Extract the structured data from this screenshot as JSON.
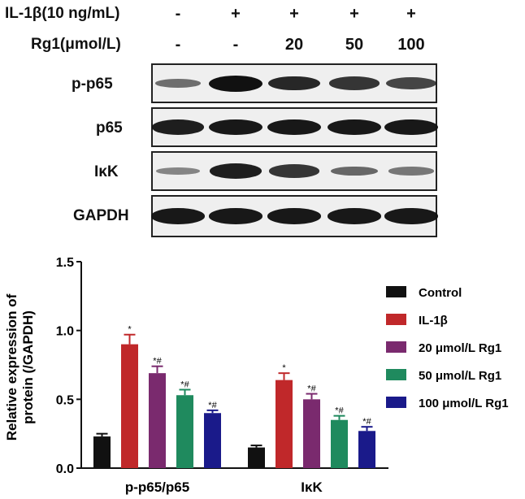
{
  "header": {
    "row1_label": "IL-1β(10 ng/mL)",
    "row1_signs": [
      "-",
      "+",
      "+",
      "+",
      "+"
    ],
    "row2_label": "Rg1(μmol/L)",
    "row2_values": [
      "-",
      "-",
      "20",
      "50",
      "100"
    ]
  },
  "blot": {
    "rows": [
      {
        "label": "p-p65",
        "intensity": [
          0.35,
          1.0,
          0.85,
          0.75,
          0.65
        ]
      },
      {
        "label": "p65",
        "intensity": [
          0.9,
          0.95,
          0.95,
          0.95,
          0.95
        ]
      },
      {
        "label": "IκK",
        "intensity": [
          0.2,
          0.9,
          0.75,
          0.4,
          0.3
        ]
      },
      {
        "label": "GAPDH",
        "intensity": [
          0.95,
          0.95,
          0.95,
          0.95,
          0.95
        ]
      }
    ]
  },
  "chart_data": {
    "type": "bar",
    "categories": [
      "p-p65/p65",
      "IκK"
    ],
    "ylabel": "Relative expression of\nprotein (/GAPDH)",
    "ylim": [
      0,
      1.5
    ],
    "yticks": [
      "0.0",
      "0.5",
      "1.0",
      "1.5"
    ],
    "legend_position": "right",
    "series": [
      {
        "name": "Control",
        "color": "#111111",
        "values": [
          0.23,
          0.15
        ],
        "errors": [
          0.02,
          0.015
        ],
        "annotations": [
          "",
          ""
        ]
      },
      {
        "name": "IL-1β",
        "color": "#c0282a",
        "values": [
          0.9,
          0.64
        ],
        "errors": [
          0.07,
          0.05
        ],
        "annotations": [
          "*",
          "*"
        ]
      },
      {
        "name": "20 μmol/L Rg1",
        "color": "#7a2a6e",
        "values": [
          0.69,
          0.5
        ],
        "errors": [
          0.05,
          0.04
        ],
        "annotations": [
          "*#",
          "*#"
        ]
      },
      {
        "name": "50 μmol/L Rg1",
        "color": "#1f8a5e",
        "values": [
          0.53,
          0.35
        ],
        "errors": [
          0.04,
          0.03
        ],
        "annotations": [
          "*#",
          "*#"
        ]
      },
      {
        "name": "100 μmol/L Rg1",
        "color": "#1a1a8a",
        "values": [
          0.4,
          0.27
        ],
        "errors": [
          0.02,
          0.03
        ],
        "annotations": [
          "*#",
          "*#"
        ]
      }
    ]
  }
}
